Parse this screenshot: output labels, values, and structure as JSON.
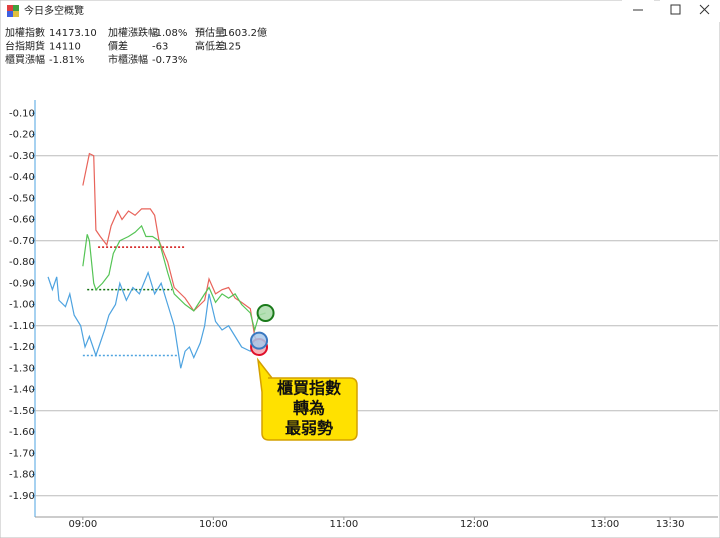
{
  "window": {
    "title": "今日多空概覽"
  },
  "stats": [
    [
      {
        "label": "加權指數",
        "value": "14173.10",
        "color": "#1a9a1a"
      },
      {
        "label": "台指期貨",
        "value": "14110",
        "color": "#1a9a1a"
      },
      {
        "label": "櫃買漲幅",
        "value": "-1.81%",
        "color": "#1a9a1a"
      }
    ],
    [
      {
        "label": "加權漲跌幅",
        "value": "-1.08%",
        "color": "#1a9a1a"
      },
      {
        "label": "價差",
        "value": "-63",
        "color": "#1a9a1a"
      },
      {
        "label": "市櫃漲幅",
        "value": "-0.73%",
        "color": "#1a9a1a"
      }
    ],
    [
      {
        "label": "預估量",
        "value": "1603.2億",
        "color": "#e8202a"
      },
      {
        "label": "高低差",
        "value": "125",
        "color": "#e8202a"
      }
    ]
  ],
  "chart_data": {
    "type": "line",
    "xlim": [
      518,
      832
    ],
    "ylim": [
      -2.0,
      0.0
    ],
    "xticks": [
      {
        "value": 540,
        "label": "09:00"
      },
      {
        "value": 600,
        "label": "10:00"
      },
      {
        "value": 660,
        "label": "11:00"
      },
      {
        "value": 720,
        "label": "12:00"
      },
      {
        "value": 780,
        "label": "13:00"
      },
      {
        "value": 810,
        "label": "13:30"
      }
    ],
    "yticks": [
      {
        "value": -0.1,
        "label": "-0.10"
      },
      {
        "value": -0.2,
        "label": "-0.20"
      },
      {
        "value": -0.3,
        "label": "-0.30"
      },
      {
        "value": -0.4,
        "label": "-0.40"
      },
      {
        "value": -0.5,
        "label": "-0.50"
      },
      {
        "value": -0.6,
        "label": "-0.60"
      },
      {
        "value": -0.7,
        "label": "-0.70"
      },
      {
        "value": -0.8,
        "label": "-0.80"
      },
      {
        "value": -0.9,
        "label": "-0.90"
      },
      {
        "value": -1.0,
        "label": "-1.00"
      },
      {
        "value": -1.1,
        "label": "-1.10"
      },
      {
        "value": -1.2,
        "label": "-1.20"
      },
      {
        "value": -1.3,
        "label": "-1.30"
      },
      {
        "value": -1.4,
        "label": "-1.40"
      },
      {
        "value": -1.5,
        "label": "-1.50"
      },
      {
        "value": -1.6,
        "label": "-1.60"
      },
      {
        "value": -1.7,
        "label": "-1.70"
      },
      {
        "value": -1.8,
        "label": "-1.80"
      },
      {
        "value": -1.9,
        "label": "-1.90"
      }
    ],
    "ygrid": [
      -0.3,
      -0.7,
      -1.1,
      -1.5,
      -1.9
    ],
    "series": [
      {
        "color": "#e8635a",
        "end_color": "#f4a6ad",
        "end_stroke": "#e0102a",
        "x": [
          540,
          543,
          545,
          546,
          548,
          551,
          553,
          556,
          558,
          561,
          564,
          567,
          571,
          573,
          575,
          579,
          582,
          587,
          591,
          596,
          598,
          601,
          604,
          607,
          610,
          613,
          617,
          619,
          621
        ],
        "values": [
          -0.44,
          -0.29,
          -0.3,
          -0.65,
          -0.68,
          -0.72,
          -0.63,
          -0.56,
          -0.6,
          -0.56,
          -0.58,
          -0.55,
          -0.55,
          -0.58,
          -0.7,
          -0.8,
          -0.92,
          -0.97,
          -1.03,
          -0.98,
          -0.88,
          -0.95,
          -0.93,
          -0.92,
          -0.97,
          -0.99,
          -1.02,
          -1.15,
          -1.2
        ]
      },
      {
        "color": "#55c455",
        "end_color": "#a9dba9",
        "end_stroke": "#1a7a1a",
        "x": [
          540,
          542,
          543,
          545,
          546,
          549,
          552,
          554,
          557,
          561,
          564,
          567,
          569,
          572,
          575,
          579,
          582,
          587,
          591,
          596,
          598,
          601,
          604,
          607,
          610,
          613,
          617,
          619,
          621,
          624
        ],
        "values": [
          -0.82,
          -0.67,
          -0.7,
          -0.9,
          -0.93,
          -0.9,
          -0.86,
          -0.76,
          -0.7,
          -0.68,
          -0.66,
          -0.63,
          -0.68,
          -0.68,
          -0.7,
          -0.85,
          -0.95,
          -1.0,
          -1.03,
          -0.95,
          -0.92,
          -0.99,
          -0.95,
          -0.97,
          -0.95,
          -1.0,
          -1.04,
          -1.12,
          -1.05,
          -1.04
        ]
      },
      {
        "color": "#4ea3e0",
        "end_color": "#a9c8ea",
        "end_stroke": "#3a78c0",
        "x": [
          524,
          526,
          528,
          529,
          532,
          534,
          536,
          539,
          541,
          543,
          546,
          548,
          550,
          552,
          555,
          557,
          560,
          563,
          566,
          570,
          573,
          576,
          579,
          582,
          585,
          587,
          589,
          591,
          594,
          596,
          598,
          601,
          604,
          607,
          610,
          613,
          617,
          619,
          621
        ],
        "values": [
          -0.87,
          -0.93,
          -0.87,
          -0.98,
          -1.01,
          -0.95,
          -1.05,
          -1.1,
          -1.2,
          -1.15,
          -1.24,
          -1.18,
          -1.12,
          -1.05,
          -1.0,
          -0.9,
          -0.98,
          -0.92,
          -0.95,
          -0.85,
          -0.95,
          -0.9,
          -1.0,
          -1.1,
          -1.3,
          -1.22,
          -1.2,
          -1.25,
          -1.18,
          -1.1,
          -0.95,
          -1.08,
          -1.12,
          -1.1,
          -1.15,
          -1.2,
          -1.22,
          -1.18,
          -1.17
        ]
      }
    ],
    "reference_lines": [
      {
        "value": -0.73,
        "x": [
          547,
          587
        ],
        "color": "#d01010"
      },
      {
        "value": -0.93,
        "x": [
          542,
          581
        ],
        "color": "#107010"
      },
      {
        "value": -1.24,
        "x": [
          540,
          584
        ],
        "color": "#4ea3e0"
      }
    ],
    "annotation": {
      "lines": [
        "櫃買指數",
        "轉為",
        "最弱勢"
      ]
    }
  }
}
